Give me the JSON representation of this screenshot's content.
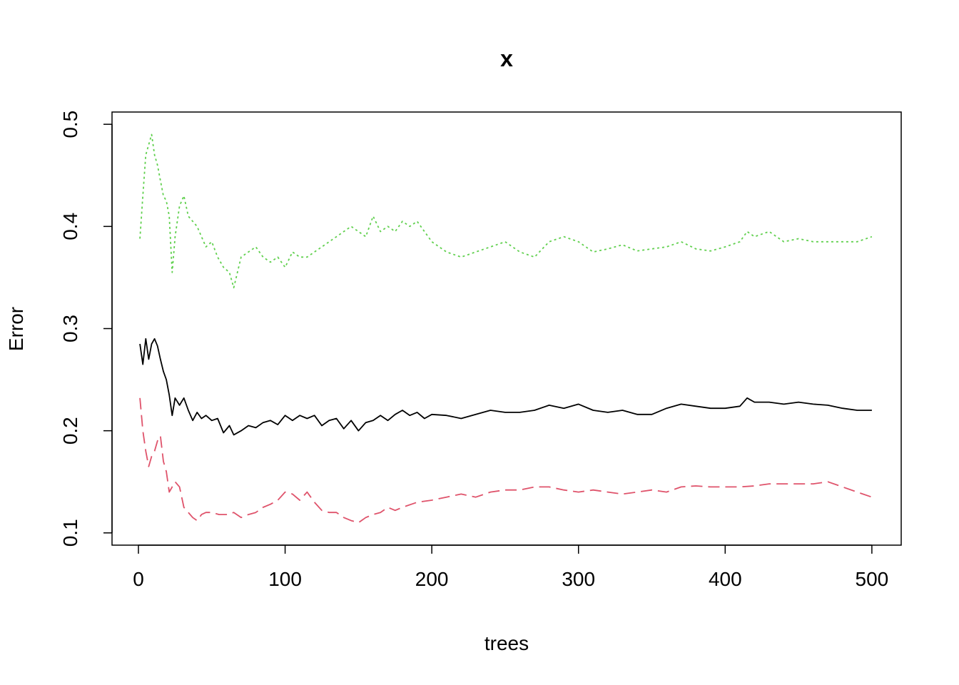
{
  "chart_data": {
    "type": "line",
    "title": "x",
    "xlabel": "trees",
    "ylabel": "Error",
    "xlim": [
      -18,
      520
    ],
    "ylim": [
      0.088,
      0.512
    ],
    "xticks": [
      0,
      100,
      200,
      300,
      400,
      500
    ],
    "yticks": [
      0.1,
      0.2,
      0.3,
      0.4,
      0.5
    ],
    "xtick_labels": [
      "0",
      "100",
      "200",
      "300",
      "400",
      "500"
    ],
    "ytick_labels": [
      "0.1",
      "0.2",
      "0.3",
      "0.4",
      "0.5"
    ],
    "grid": false,
    "legend": "none",
    "series": [
      {
        "color": "#000000",
        "dash": "solid",
        "x": [
          1,
          3,
          5,
          7,
          9,
          11,
          13,
          15,
          17,
          19,
          21,
          23,
          25,
          28,
          31,
          34,
          37,
          40,
          43,
          46,
          50,
          54,
          58,
          62,
          65,
          70,
          75,
          80,
          85,
          90,
          95,
          100,
          105,
          110,
          115,
          120,
          125,
          130,
          135,
          140,
          145,
          150,
          155,
          160,
          165,
          170,
          175,
          180,
          185,
          190,
          195,
          200,
          210,
          220,
          230,
          240,
          250,
          260,
          270,
          280,
          290,
          300,
          310,
          320,
          330,
          340,
          350,
          360,
          370,
          380,
          390,
          400,
          410,
          415,
          420,
          430,
          440,
          450,
          460,
          470,
          480,
          490,
          500
        ],
        "y": [
          0.285,
          0.265,
          0.29,
          0.27,
          0.285,
          0.29,
          0.283,
          0.27,
          0.258,
          0.25,
          0.235,
          0.215,
          0.232,
          0.225,
          0.232,
          0.22,
          0.21,
          0.218,
          0.212,
          0.215,
          0.21,
          0.212,
          0.198,
          0.205,
          0.196,
          0.2,
          0.205,
          0.203,
          0.208,
          0.21,
          0.206,
          0.215,
          0.21,
          0.215,
          0.212,
          0.215,
          0.205,
          0.21,
          0.212,
          0.202,
          0.21,
          0.2,
          0.208,
          0.21,
          0.215,
          0.21,
          0.216,
          0.22,
          0.215,
          0.218,
          0.212,
          0.216,
          0.215,
          0.212,
          0.216,
          0.22,
          0.218,
          0.218,
          0.22,
          0.225,
          0.222,
          0.226,
          0.22,
          0.218,
          0.22,
          0.216,
          0.216,
          0.222,
          0.226,
          0.224,
          0.222,
          0.222,
          0.224,
          0.232,
          0.228,
          0.228,
          0.226,
          0.228,
          0.226,
          0.225,
          0.222,
          0.22,
          0.22
        ]
      },
      {
        "color": "#df536b",
        "dash": "long-dash",
        "x": [
          1,
          3,
          5,
          7,
          9,
          11,
          13,
          15,
          17,
          19,
          21,
          23,
          25,
          28,
          31,
          34,
          37,
          40,
          43,
          46,
          50,
          55,
          60,
          65,
          70,
          75,
          80,
          85,
          90,
          95,
          100,
          105,
          110,
          115,
          120,
          125,
          130,
          135,
          140,
          145,
          150,
          155,
          160,
          165,
          170,
          175,
          180,
          190,
          200,
          210,
          220,
          230,
          240,
          250,
          260,
          270,
          280,
          290,
          300,
          310,
          320,
          330,
          340,
          350,
          360,
          370,
          380,
          390,
          400,
          410,
          420,
          430,
          440,
          450,
          460,
          470,
          480,
          490,
          500
        ],
        "y": [
          0.232,
          0.2,
          0.18,
          0.165,
          0.175,
          0.18,
          0.19,
          0.195,
          0.17,
          0.16,
          0.14,
          0.145,
          0.15,
          0.145,
          0.125,
          0.12,
          0.115,
          0.112,
          0.118,
          0.12,
          0.12,
          0.118,
          0.118,
          0.12,
          0.115,
          0.118,
          0.12,
          0.125,
          0.128,
          0.132,
          0.14,
          0.138,
          0.132,
          0.14,
          0.13,
          0.122,
          0.12,
          0.12,
          0.115,
          0.112,
          0.11,
          0.115,
          0.118,
          0.12,
          0.125,
          0.122,
          0.125,
          0.13,
          0.132,
          0.135,
          0.138,
          0.135,
          0.14,
          0.142,
          0.142,
          0.145,
          0.145,
          0.142,
          0.14,
          0.142,
          0.14,
          0.138,
          0.14,
          0.142,
          0.14,
          0.145,
          0.146,
          0.145,
          0.145,
          0.145,
          0.146,
          0.148,
          0.148,
          0.148,
          0.148,
          0.15,
          0.145,
          0.14,
          0.135
        ]
      },
      {
        "color": "#61d04f",
        "dash": "dotted",
        "x": [
          1,
          3,
          5,
          7,
          9,
          11,
          13,
          15,
          17,
          19,
          21,
          23,
          25,
          28,
          31,
          34,
          37,
          40,
          43,
          46,
          50,
          54,
          58,
          62,
          65,
          70,
          75,
          80,
          85,
          90,
          95,
          100,
          105,
          110,
          115,
          120,
          125,
          130,
          135,
          140,
          145,
          150,
          155,
          160,
          165,
          170,
          175,
          180,
          185,
          190,
          200,
          210,
          220,
          230,
          240,
          250,
          260,
          270,
          280,
          290,
          300,
          310,
          320,
          330,
          340,
          350,
          360,
          370,
          380,
          390,
          400,
          410,
          415,
          420,
          430,
          440,
          450,
          460,
          470,
          480,
          490,
          500
        ],
        "y": [
          0.388,
          0.43,
          0.47,
          0.48,
          0.49,
          0.47,
          0.46,
          0.445,
          0.43,
          0.425,
          0.41,
          0.355,
          0.39,
          0.42,
          0.43,
          0.41,
          0.405,
          0.4,
          0.39,
          0.38,
          0.385,
          0.37,
          0.36,
          0.355,
          0.34,
          0.37,
          0.375,
          0.38,
          0.37,
          0.365,
          0.37,
          0.36,
          0.375,
          0.37,
          0.37,
          0.375,
          0.38,
          0.385,
          0.39,
          0.395,
          0.4,
          0.395,
          0.39,
          0.41,
          0.395,
          0.4,
          0.395,
          0.405,
          0.4,
          0.405,
          0.385,
          0.375,
          0.37,
          0.375,
          0.38,
          0.385,
          0.375,
          0.37,
          0.385,
          0.39,
          0.385,
          0.375,
          0.378,
          0.382,
          0.376,
          0.378,
          0.38,
          0.385,
          0.378,
          0.376,
          0.38,
          0.385,
          0.395,
          0.39,
          0.395,
          0.385,
          0.388,
          0.385,
          0.385,
          0.385,
          0.385,
          0.39
        ]
      }
    ]
  }
}
